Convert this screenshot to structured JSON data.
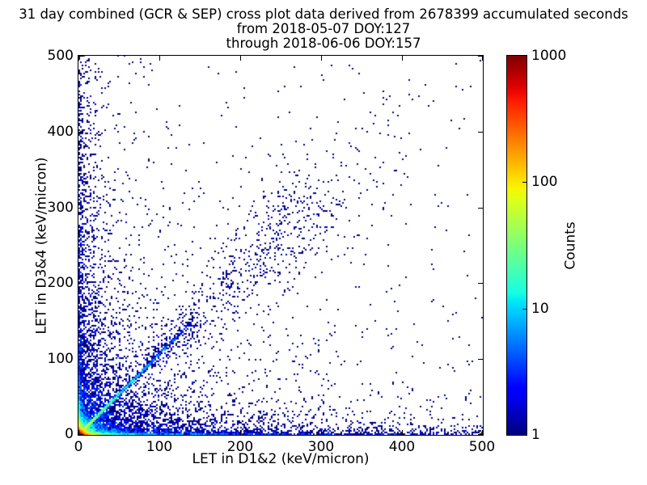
{
  "figure": {
    "title_lines": [
      "31 day combined (GCR & SEP) cross plot data derived from 2678399 accumulated seconds",
      "from 2018-05-07 DOY:127",
      "through 2018-06-06 DOY:157"
    ]
  },
  "chart_data": {
    "type": "heatmap",
    "subtype": "2d-histogram cross plot of coincident LET measurements",
    "title": "31 day combined (GCR & SEP) cross plot data derived from 2678399 accumulated seconds",
    "subtitle_lines": [
      "from 2018-05-07 DOY:127",
      "through 2018-06-06 DOY:157"
    ],
    "xlabel": "LET in D1&2 (keV/micron)",
    "ylabel": "LET in D3&4 (keV/micron)",
    "xlim": [
      0,
      500
    ],
    "ylim": [
      0,
      500
    ],
    "xticks": [
      0,
      100,
      200,
      300,
      400,
      500
    ],
    "yticks": [
      0,
      100,
      200,
      300,
      400,
      500
    ],
    "grid": false,
    "background": "#ffffff",
    "point_color_min": "#000080",
    "point_color_max": "#800000",
    "stats": {
      "duration_days": 31,
      "accumulated_seconds": 2678399,
      "start_date": "2018-05-07",
      "start_doy": 127,
      "end_date": "2018-06-06",
      "end_doy": 157
    },
    "colorbar": {
      "label": "Counts",
      "scale": "log",
      "min": 1,
      "max": 1000,
      "ticks": [
        1,
        10,
        100,
        1000
      ],
      "colormap": "jet",
      "jet_stops": {
        "r": [
          [
            0,
            0
          ],
          [
            0.35,
            0
          ],
          [
            0.66,
            1
          ],
          [
            0.89,
            1
          ],
          [
            1,
            0.5
          ]
        ],
        "g": [
          [
            0,
            0
          ],
          [
            0.125,
            0
          ],
          [
            0.375,
            1
          ],
          [
            0.64,
            1
          ],
          [
            0.91,
            0
          ],
          [
            1,
            0
          ]
        ],
        "b": [
          [
            0,
            0.5
          ],
          [
            0.11,
            1
          ],
          [
            0.34,
            1
          ],
          [
            0.65,
            0
          ],
          [
            1,
            0
          ]
        ]
      }
    },
    "density_model": {
      "seed": 42,
      "bin_size_data_units": 2,
      "analytic_fields": [
        {
          "name": "corner-hotspot",
          "type": "corner",
          "amp": 1300,
          "sum_scale": 3.2,
          "halo_amp": 90,
          "halo_scale": 7,
          "range": 80
        },
        {
          "name": "bottom-band",
          "type": "hband",
          "amp": 280,
          "scale1": 12,
          "amp2": 8,
          "scale2": 150,
          "floor": 0.25,
          "row_factors": [
            1,
            0.3,
            0.1,
            0.04
          ]
        },
        {
          "name": "left-band",
          "type": "vband",
          "amp": 160,
          "scale1": 10,
          "amp2": 3,
          "scale2": 100,
          "floor": 0.18,
          "row_factors": [
            1,
            0.25,
            0.07
          ]
        },
        {
          "name": "diagonal-streak",
          "type": "diag",
          "amp": 75,
          "decay": 40,
          "t_max": 140,
          "side_factor": 0.3
        },
        {
          "name": "low-cloud-x",
          "type": "exp2d",
          "amp": 3.5,
          "x_scale": 70,
          "y_scale": 28
        },
        {
          "name": "low-cloud-y",
          "type": "exp2d",
          "amp": 2.2,
          "x_scale": 22,
          "y_scale": 90
        },
        {
          "name": "left-column",
          "type": "exp2d",
          "amp": 1.1,
          "x_scale": 10,
          "y_scale": 400
        },
        {
          "name": "bottom-tail",
          "type": "exp2d",
          "amp": 1.3,
          "x_scale": 400,
          "y_scale": 9
        },
        {
          "name": "mid-sparse",
          "type": "exp2d",
          "amp": 0.22,
          "x_scale": 150,
          "y_scale": 150
        },
        {
          "name": "uniform-sparse",
          "type": "flat",
          "amp": 0.0025
        },
        {
          "name": "vstreak-20",
          "type": "vstreak",
          "x": 20,
          "amp": 0.5,
          "y_scale": 180
        },
        {
          "name": "vstreak-33",
          "type": "vstreak",
          "x": 33,
          "amp": 0.3,
          "y_scale": 80
        },
        {
          "name": "vstreak-50",
          "type": "vstreak",
          "x": 50,
          "amp": 0.35,
          "y_scale": 100
        },
        {
          "name": "hstreak-25",
          "type": "hstreak",
          "y": 25,
          "amp": 0.3,
          "x_scale": 120
        }
      ],
      "sampled_clouds": [
        {
          "name": "diagonal-cloud",
          "n": 800,
          "t_min": 80,
          "t_max": 430,
          "base_frac": 0.55,
          "base_decay": 150,
          "peak_t": 255,
          "peak_sigma": 45,
          "sigma0": 6,
          "sigma_slope": 0.13,
          "t_jitter": 8
        }
      ]
    }
  }
}
